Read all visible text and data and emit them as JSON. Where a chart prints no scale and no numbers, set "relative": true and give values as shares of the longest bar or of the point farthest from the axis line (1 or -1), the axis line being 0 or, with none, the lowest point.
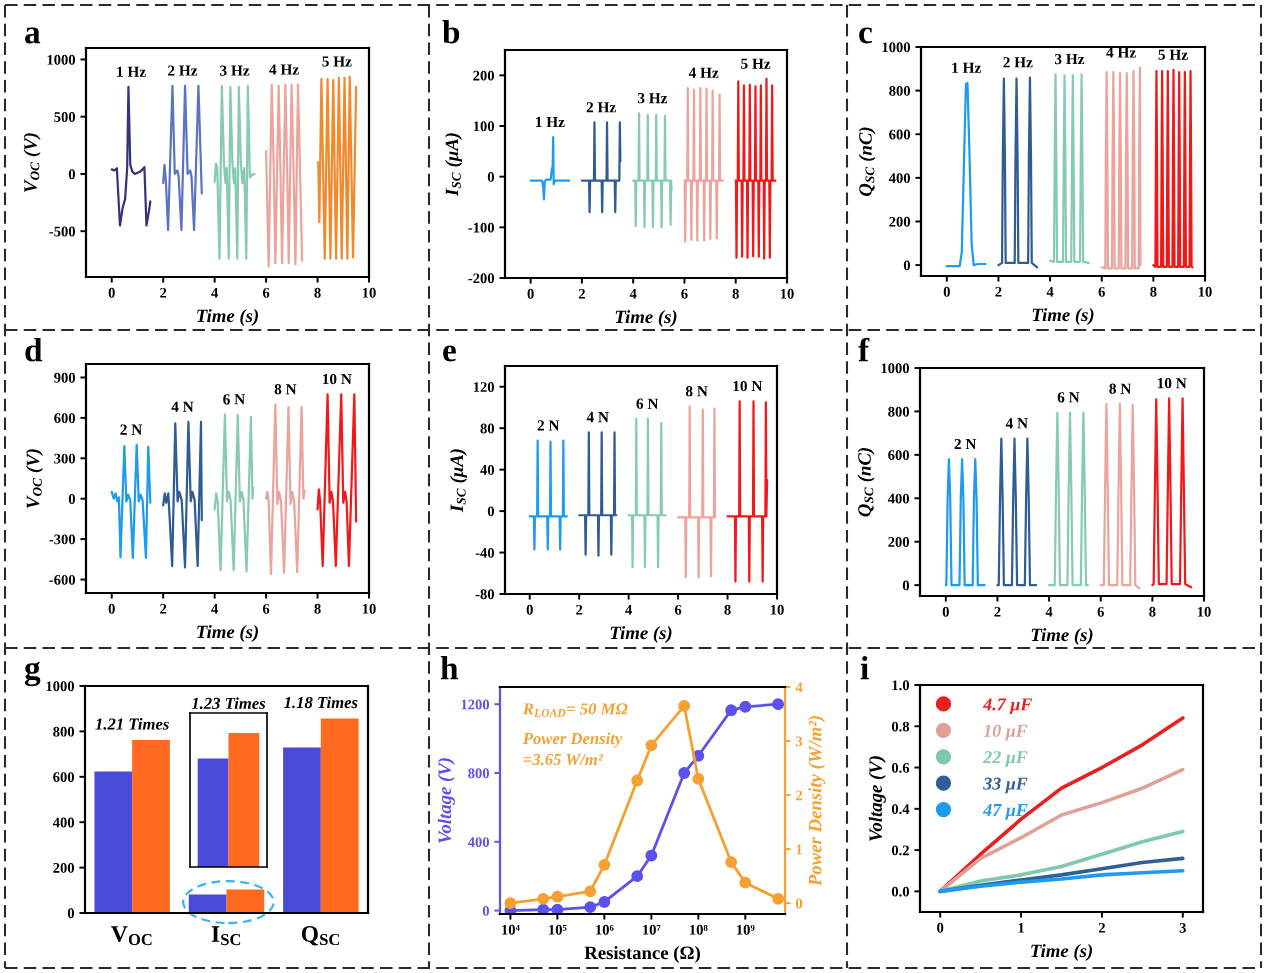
{
  "chart_data": [
    {
      "type": "line",
      "title": "a",
      "xlabel": "Time (s)",
      "ylabel": "V$_{OC}$ (V)",
      "xlim": [
        -1,
        10
      ],
      "xticks": [
        0,
        2,
        4,
        6,
        8,
        10
      ],
      "ylim": [
        -900,
        1100
      ],
      "yticks": [
        -500,
        0,
        500,
        1000
      ],
      "series": [
        {
          "name": "1 Hz",
          "color": "#34347a",
          "x": [
            0,
            0.1,
            0.15,
            0.2,
            0.32,
            0.42,
            0.52,
            0.6,
            0.65,
            0.72,
            0.8,
            0.9,
            1.0,
            1.1,
            1.2,
            1.27,
            1.35,
            1.45,
            1.5
          ],
          "values": [
            40,
            30,
            40,
            50,
            -450,
            -300,
            -220,
            50,
            760,
            80,
            20,
            0,
            10,
            20,
            40,
            60,
            -450,
            -320,
            -240
          ]
        },
        {
          "name": "2 Hz",
          "color": "#5b73c4",
          "x": [
            2.0,
            2.05,
            2.1,
            2.19,
            2.36,
            2.45,
            2.55,
            2.6,
            2.71,
            2.85,
            2.95,
            3.05,
            3.1,
            3.2,
            3.37,
            3.5
          ],
          "values": [
            -80,
            80,
            -40,
            -490,
            770,
            0,
            30,
            -20,
            -490,
            770,
            0,
            30,
            -20,
            -490,
            770,
            -170
          ]
        },
        {
          "name": "3 Hz",
          "color": "#86cbb0",
          "x": [
            4.0,
            4.05,
            4.1,
            4.19,
            4.28,
            4.36,
            4.42,
            4.47,
            4.55,
            4.61,
            4.69,
            4.75,
            4.8,
            4.88,
            4.94,
            5.02,
            5.08,
            5.15,
            5.23,
            5.29,
            5.37,
            5.45,
            5.55
          ],
          "values": [
            -70,
            90,
            60,
            -740,
            770,
            100,
            -80,
            50,
            -740,
            760,
            100,
            -80,
            50,
            -740,
            760,
            100,
            -80,
            50,
            -740,
            770,
            -30,
            -10,
            0
          ]
        },
        {
          "name": "4 Hz",
          "color": "#eba39c",
          "x": [
            6.0,
            6.1,
            6.22,
            6.3,
            6.36,
            6.49,
            6.56,
            6.62,
            6.75,
            6.82,
            6.88,
            6.99,
            7.07,
            7.14,
            7.24,
            7.32,
            7.4
          ],
          "values": [
            200,
            -810,
            780,
            20,
            -780,
            770,
            20,
            -780,
            780,
            20,
            -780,
            780,
            20,
            -790,
            780,
            20,
            -760
          ]
        },
        {
          "name": "5 Hz",
          "color": "#f08a2c",
          "x": [
            8.0,
            8.03,
            8.07,
            8.15,
            8.28,
            8.39,
            8.5,
            8.61,
            8.72,
            8.83,
            8.94,
            9.05,
            9.16,
            9.25,
            9.38,
            9.5
          ],
          "values": [
            100,
            100,
            -420,
            830,
            -740,
            830,
            -740,
            820,
            -740,
            840,
            -740,
            840,
            -740,
            850,
            -730,
            760
          ]
        }
      ]
    },
    {
      "type": "line",
      "title": "b",
      "xlabel": "Time (s)",
      "ylabel": "I$_{SC}$ (μA)",
      "xlim": [
        -1,
        10
      ],
      "xticks": [
        0,
        2,
        4,
        6,
        8,
        10
      ],
      "ylim": [
        -200,
        250
      ],
      "yticks": [
        -200,
        -100,
        0,
        100,
        200
      ],
      "series": [
        {
          "name": "1 Hz",
          "color": "#1e9af0",
          "x": [
            0,
            0.45,
            0.49,
            0.52,
            0.55,
            0.6,
            0.78,
            0.83,
            0.86,
            0.88,
            0.9,
            0.94,
            1.5
          ],
          "values": [
            -8,
            -8,
            -20,
            -45,
            -10,
            -6,
            -6,
            15,
            20,
            78,
            -15,
            -8,
            -8
          ]
        },
        {
          "name": "2 Hz",
          "color": "#2f5c94",
          "x": [
            2.0,
            2.28,
            2.3,
            2.32,
            2.47,
            2.49,
            2.51,
            2.77,
            2.79,
            2.81,
            2.96,
            2.98,
            3.0,
            3.28,
            3.3,
            3.32,
            3.46,
            3.48,
            3.5
          ],
          "values": [
            -8,
            -8,
            -70,
            -8,
            -8,
            107,
            -8,
            -8,
            -70,
            -8,
            -8,
            107,
            -8,
            -8,
            -70,
            -8,
            -8,
            107,
            30
          ]
        },
        {
          "name": "3 Hz",
          "color": "#86cbb0",
          "x": [
            4.0,
            4.08,
            4.1,
            4.12,
            4.21,
            4.23,
            4.25,
            4.42,
            4.44,
            4.46,
            4.55,
            4.57,
            4.59,
            4.75,
            4.77,
            4.79,
            4.88,
            4.9,
            4.92,
            5.09,
            5.11,
            5.13,
            5.22,
            5.24,
            5.26,
            5.44,
            5.46,
            5.48,
            5.5
          ],
          "values": [
            -8,
            -8,
            -98,
            -8,
            -8,
            125,
            -8,
            -8,
            -100,
            -8,
            -8,
            122,
            -8,
            -8,
            -100,
            -8,
            -8,
            122,
            -8,
            -8,
            -100,
            -8,
            -8,
            120,
            -8,
            -8,
            -95,
            -8,
            -25
          ]
        },
        {
          "name": "4 Hz",
          "color": "#eba39c",
          "x": [
            6.0,
            6.01,
            6.03,
            6.05,
            6.11,
            6.13,
            6.15,
            6.25,
            6.27,
            6.29,
            6.35,
            6.37,
            6.39,
            6.48,
            6.5,
            6.52,
            6.6,
            6.62,
            6.64,
            6.75,
            6.77,
            6.79,
            6.84,
            6.86,
            6.88,
            6.99,
            7.01,
            7.03,
            7.08,
            7.1,
            7.12,
            7.24,
            7.26,
            7.28,
            7.35,
            7.37,
            7.39,
            7.5
          ],
          "values": [
            -8,
            -8,
            -128,
            -8,
            -8,
            175,
            -8,
            -8,
            -125,
            -8,
            -8,
            172,
            -8,
            -8,
            -126,
            -8,
            -8,
            175,
            -8,
            -8,
            -126,
            -8,
            -8,
            174,
            -8,
            -8,
            -123,
            -8,
            -8,
            170,
            -8,
            -8,
            -122,
            -8,
            -8,
            162,
            -8,
            -8
          ]
        },
        {
          "name": "5 Hz",
          "color": "#f01818",
          "x": [
            8.0,
            8.01,
            8.03,
            8.05,
            8.08,
            8.1,
            8.12,
            8.23,
            8.25,
            8.27,
            8.3,
            8.32,
            8.34,
            8.44,
            8.46,
            8.48,
            8.53,
            8.55,
            8.57,
            8.66,
            8.68,
            8.7,
            8.75,
            8.77,
            8.79,
            8.88,
            8.9,
            8.92,
            8.96,
            8.98,
            9.0,
            9.09,
            9.11,
            9.13,
            9.18,
            9.2,
            9.22,
            9.31,
            9.33,
            9.35,
            9.4,
            9.42,
            9.44,
            9.55
          ],
          "values": [
            -8,
            -8,
            -160,
            -8,
            -8,
            188,
            -8,
            -8,
            -158,
            -8,
            -8,
            180,
            -8,
            -8,
            -160,
            -8,
            -8,
            181,
            -8,
            -8,
            -157,
            -8,
            -8,
            178,
            -8,
            -8,
            -158,
            -8,
            -8,
            180,
            -8,
            -8,
            -162,
            -8,
            -8,
            193,
            -8,
            -8,
            -160,
            -8,
            -8,
            180,
            -8,
            -8
          ]
        }
      ]
    },
    {
      "type": "line",
      "title": "c",
      "xlabel": "Time (s)",
      "ylabel": "Q$_{SC}$ (nC)",
      "xlim": [
        -1,
        10
      ],
      "xticks": [
        0,
        2,
        4,
        6,
        8,
        10
      ],
      "ylim": [
        -50,
        1000
      ],
      "yticks": [
        0,
        200,
        400,
        600,
        800,
        1000
      ],
      "series": [
        {
          "name": "1 Hz",
          "color": "#1e9af0",
          "x": [
            0,
            0.5,
            0.58,
            0.66,
            0.74,
            0.8,
            0.88,
            0.96,
            1.04,
            1.2,
            1.5
          ],
          "values": [
            -5,
            -5,
            60,
            450,
            830,
            835,
            500,
            100,
            0,
            5,
            5
          ]
        },
        {
          "name": "2 Hz",
          "color": "#2f5c94",
          "x": [
            2.0,
            2.14,
            2.17,
            2.21,
            2.25,
            2.28,
            2.63,
            2.66,
            2.7,
            2.74,
            2.77,
            3.15,
            3.18,
            3.22,
            3.26,
            3.29,
            3.5
          ],
          "values": [
            0,
            10,
            500,
            855,
            500,
            10,
            10,
            500,
            855,
            500,
            10,
            10,
            500,
            860,
            500,
            10,
            -10
          ]
        },
        {
          "name": "3 Hz",
          "color": "#86cbb0",
          "x": [
            4.0,
            4.15,
            4.18,
            4.21,
            4.24,
            4.27,
            4.5,
            4.53,
            4.56,
            4.59,
            4.62,
            4.82,
            4.85,
            4.88,
            4.91,
            4.94,
            5.16,
            5.19,
            5.22,
            5.25,
            5.28,
            5.5
          ],
          "values": [
            20,
            15,
            500,
            875,
            500,
            15,
            15,
            500,
            870,
            500,
            15,
            15,
            500,
            870,
            500,
            15,
            15,
            500,
            875,
            500,
            15,
            10
          ]
        },
        {
          "name": "4 Hz",
          "color": "#eba39c",
          "x": [
            6.0,
            6.14,
            6.16,
            6.19,
            6.22,
            6.24,
            6.4,
            6.42,
            6.45,
            6.48,
            6.5,
            6.66,
            6.68,
            6.71,
            6.74,
            6.76,
            6.92,
            6.94,
            6.97,
            7.0,
            7.02,
            7.18,
            7.2,
            7.23,
            7.26,
            7.28,
            7.43,
            7.45,
            7.48,
            7.5
          ],
          "values": [
            -10,
            -15,
            500,
            885,
            500,
            -15,
            -15,
            500,
            885,
            500,
            -15,
            -15,
            500,
            880,
            500,
            -15,
            -15,
            500,
            880,
            500,
            -15,
            -15,
            500,
            890,
            500,
            -15,
            -15,
            500,
            905,
            0
          ]
        },
        {
          "name": "5 Hz",
          "color": "#f01818",
          "x": [
            8.0,
            8.08,
            8.1,
            8.12,
            8.14,
            8.16,
            8.3,
            8.32,
            8.34,
            8.36,
            8.38,
            8.52,
            8.54,
            8.56,
            8.58,
            8.6,
            8.74,
            8.76,
            8.78,
            8.8,
            8.82,
            8.96,
            8.98,
            9.0,
            9.02,
            9.04,
            9.18,
            9.2,
            9.22,
            9.24,
            9.26,
            9.4,
            9.42,
            9.44,
            9.46,
            9.48,
            9.52
          ],
          "values": [
            0,
            -8,
            500,
            890,
            500,
            -8,
            -8,
            500,
            890,
            500,
            -8,
            -8,
            500,
            890,
            500,
            -8,
            -8,
            500,
            895,
            500,
            -8,
            -8,
            500,
            885,
            500,
            -8,
            -8,
            500,
            885,
            500,
            -8,
            -8,
            500,
            890,
            500,
            -8,
            -10
          ]
        }
      ]
    },
    {
      "type": "line",
      "title": "d",
      "xlabel": "Time (s)",
      "ylabel": "V$_{OC}$ (V)",
      "xlim": [
        -1,
        10
      ],
      "xticks": [
        0,
        2,
        4,
        6,
        8,
        10
      ],
      "ylim": [
        -700,
        1000
      ],
      "yticks": [
        -600,
        -300,
        0,
        300,
        600,
        900
      ],
      "series": [
        {
          "name": "2 N",
          "color": "#1e9af0",
          "x": [
            0,
            0.08,
            0.15,
            0.22,
            0.28,
            0.34,
            0.49,
            0.57,
            0.64,
            0.72,
            0.82,
            0.97,
            1.05,
            1.12,
            1.2,
            1.33,
            1.42,
            1.5
          ],
          "values": [
            50,
            0,
            40,
            -20,
            10,
            -435,
            390,
            -20,
            30,
            -10,
            -440,
            400,
            -20,
            30,
            -10,
            -440,
            385,
            -30
          ]
        },
        {
          "name": "4 N",
          "color": "#2f5c94",
          "x": [
            2.0,
            2.06,
            2.12,
            2.2,
            2.35,
            2.47,
            2.56,
            2.63,
            2.72,
            2.85,
            2.98,
            3.07,
            3.14,
            3.22,
            3.34,
            3.47,
            3.5
          ],
          "values": [
            -50,
            40,
            -30,
            40,
            -500,
            560,
            -20,
            50,
            -10,
            -510,
            570,
            -20,
            50,
            -10,
            -500,
            570,
            -160
          ]
        },
        {
          "name": "6 N",
          "color": "#86cbb0",
          "x": [
            4.0,
            4.06,
            4.12,
            4.23,
            4.4,
            4.48,
            4.55,
            4.62,
            4.74,
            4.9,
            4.98,
            5.05,
            5.12,
            5.24,
            5.41,
            5.47,
            5.5
          ],
          "values": [
            -80,
            40,
            -20,
            -530,
            625,
            -20,
            50,
            -10,
            -530,
            620,
            -20,
            50,
            -10,
            -540,
            605,
            0,
            80
          ]
        },
        {
          "name": "8 N",
          "color": "#eba39c",
          "x": [
            6.0,
            6.05,
            6.1,
            6.19,
            6.36,
            6.44,
            6.51,
            6.58,
            6.7,
            6.87,
            6.95,
            7.02,
            7.09,
            7.21,
            7.38,
            7.45,
            7.5
          ],
          "values": [
            0,
            50,
            -20,
            -560,
            700,
            -40,
            50,
            -20,
            -550,
            680,
            -40,
            50,
            -20,
            -545,
            680,
            0,
            60
          ]
        },
        {
          "name": "10 N",
          "color": "#f01818",
          "x": [
            8.0,
            8.05,
            8.1,
            8.2,
            8.39,
            8.47,
            8.54,
            8.6,
            8.71,
            8.92,
            9.0,
            9.07,
            9.13,
            9.22,
            9.43,
            9.5
          ],
          "values": [
            -80,
            70,
            -20,
            -500,
            775,
            -30,
            50,
            -20,
            -500,
            775,
            -30,
            50,
            -20,
            -500,
            775,
            -170
          ]
        }
      ]
    },
    {
      "type": "line",
      "title": "e",
      "xlabel": "Time (s)",
      "ylabel": "I$_{SC}$ (μA)",
      "xlim": [
        -1,
        10
      ],
      "xticks": [
        0,
        2,
        4,
        6,
        8,
        10
      ],
      "ylim": [
        -80,
        140
      ],
      "yticks": [
        -80,
        -40,
        0,
        40,
        80,
        120
      ],
      "series": [
        {
          "name": "2 N",
          "color": "#1e9af0",
          "x": [
            0,
            0.17,
            0.19,
            0.21,
            0.3,
            0.32,
            0.34,
            0.71,
            0.73,
            0.75,
            0.82,
            0.84,
            0.86,
            1.21,
            1.23,
            1.25,
            1.34,
            1.36,
            1.38,
            1.5
          ],
          "values": [
            -5,
            -5,
            -37,
            -5,
            -5,
            68,
            -5,
            -5,
            -37,
            -5,
            -5,
            67,
            -5,
            -5,
            -37,
            -5,
            -5,
            68,
            -5,
            -5
          ]
        },
        {
          "name": "4 N",
          "color": "#2f5c94",
          "x": [
            2.0,
            2.24,
            2.26,
            2.28,
            2.37,
            2.39,
            2.41,
            2.76,
            2.78,
            2.8,
            2.89,
            2.91,
            2.93,
            3.28,
            3.3,
            3.32,
            3.41,
            3.43,
            3.45,
            3.5
          ],
          "values": [
            -4,
            -4,
            -42,
            -4,
            -4,
            76,
            -4,
            -4,
            -43,
            -4,
            -4,
            76,
            -4,
            -4,
            -42,
            -4,
            -4,
            76,
            -4,
            -4
          ]
        },
        {
          "name": "6 N",
          "color": "#86cbb0",
          "x": [
            4.0,
            4.14,
            4.16,
            4.18,
            4.29,
            4.31,
            4.33,
            4.64,
            4.66,
            4.68,
            4.76,
            4.78,
            4.8,
            5.17,
            5.19,
            5.21,
            5.3,
            5.32,
            5.34,
            5.5
          ],
          "values": [
            -4,
            -4,
            -54,
            -4,
            -4,
            89,
            -4,
            -4,
            -54,
            -4,
            -4,
            89,
            -4,
            -4,
            -54,
            -4,
            -4,
            85,
            -4,
            -4
          ]
        },
        {
          "name": "8 N",
          "color": "#eba39c",
          "x": [
            6.0,
            6.29,
            6.31,
            6.33,
            6.45,
            6.47,
            6.49,
            6.81,
            6.83,
            6.85,
            6.98,
            7.0,
            7.02,
            7.31,
            7.33,
            7.35,
            7.45,
            7.47,
            7.49,
            7.5
          ],
          "values": [
            -6,
            -6,
            -64,
            -6,
            -6,
            101,
            -6,
            -6,
            -64,
            -6,
            -6,
            98,
            -6,
            -6,
            -63,
            -6,
            -6,
            99,
            -6,
            -6
          ]
        },
        {
          "name": "10 N",
          "color": "#f01818",
          "x": [
            8.0,
            8.3,
            8.32,
            8.34,
            8.47,
            8.49,
            8.51,
            8.86,
            8.88,
            8.9,
            9.03,
            9.05,
            9.07,
            9.4,
            9.42,
            9.44,
            9.53,
            9.55,
            9.57,
            9.6
          ],
          "values": [
            -5,
            -5,
            -68,
            -5,
            -5,
            106,
            -5,
            -5,
            -68,
            -5,
            -5,
            106,
            -5,
            -5,
            -68,
            -5,
            -5,
            105,
            -5,
            30
          ]
        }
      ]
    },
    {
      "type": "line",
      "title": "f",
      "xlabel": "Time (s)",
      "ylabel": "Q$_{SC}$ (nC)",
      "xlim": [
        -1,
        10
      ],
      "xticks": [
        0,
        2,
        4,
        6,
        8,
        10
      ],
      "ylim": [
        -50,
        1000
      ],
      "yticks": [
        0,
        200,
        400,
        600,
        800,
        1000
      ],
      "series": [
        {
          "name": "2 N",
          "color": "#1e9af0",
          "x": [
            0,
            0.02,
            0.07,
            0.12,
            0.17,
            0.22,
            0.53,
            0.58,
            0.63,
            0.68,
            0.73,
            1.04,
            1.09,
            1.14,
            1.19,
            1.24,
            1.5
          ],
          "values": [
            0,
            0,
            400,
            580,
            400,
            0,
            0,
            400,
            580,
            400,
            0,
            0,
            400,
            580,
            400,
            0,
            0
          ]
        },
        {
          "name": "4 N",
          "color": "#2f5c94",
          "x": [
            2.0,
            2.05,
            2.1,
            2.15,
            2.2,
            2.25,
            2.56,
            2.61,
            2.66,
            2.71,
            2.76,
            3.06,
            3.11,
            3.16,
            3.21,
            3.26,
            3.5
          ],
          "values": [
            0,
            0,
            400,
            675,
            400,
            0,
            0,
            400,
            675,
            400,
            0,
            0,
            400,
            675,
            400,
            0,
            0
          ]
        },
        {
          "name": "6 N",
          "color": "#86cbb0",
          "x": [
            4.0,
            4.22,
            4.27,
            4.32,
            4.37,
            4.42,
            4.71,
            4.76,
            4.81,
            4.86,
            4.91,
            5.23,
            5.28,
            5.33,
            5.38,
            5.43,
            5.5
          ],
          "values": [
            0,
            0,
            450,
            795,
            450,
            0,
            0,
            450,
            795,
            450,
            0,
            0,
            450,
            795,
            450,
            0,
            0
          ]
        },
        {
          "name": "8 N",
          "color": "#eba39c",
          "x": [
            6.0,
            6.12,
            6.17,
            6.22,
            6.27,
            6.32,
            6.64,
            6.69,
            6.74,
            6.79,
            6.84,
            7.14,
            7.19,
            7.24,
            7.29,
            7.34,
            7.5
          ],
          "values": [
            0,
            0,
            450,
            835,
            450,
            0,
            0,
            450,
            835,
            450,
            0,
            0,
            450,
            830,
            450,
            0,
            -15
          ]
        },
        {
          "name": "10 N",
          "color": "#f01818",
          "x": [
            8.0,
            8.05,
            8.1,
            8.15,
            8.2,
            8.25,
            8.55,
            8.6,
            8.65,
            8.7,
            8.75,
            9.07,
            9.12,
            9.17,
            9.22,
            9.27,
            9.5
          ],
          "values": [
            0,
            5,
            450,
            855,
            450,
            5,
            5,
            450,
            860,
            450,
            5,
            5,
            450,
            860,
            450,
            5,
            -10
          ]
        }
      ]
    },
    {
      "type": "bar",
      "title": "g",
      "categories": [
        "V$_{OC}$",
        "I$_{SC}$",
        "Q$_{SC}$"
      ],
      "ylim": [
        0,
        1000
      ],
      "yticks": [
        0,
        200,
        400,
        600,
        800,
        1000
      ],
      "series": [
        {
          "color": "#4a4ad8",
          "values": [
            623,
            81,
            729
          ]
        },
        {
          "color": "#ff6a1e",
          "values": [
            762,
            103,
            857
          ]
        }
      ],
      "annotations": [
        {
          "text": "1.21 Times",
          "x": "V$_{OC}$",
          "y": 762
        },
        {
          "text": "1.18 Times",
          "x": "Q$_{SC}$",
          "y": 857
        }
      ]
    },
    {
      "type": "bar",
      "title": "1.23 Times",
      "relative": true,
      "categories": [
        null
      ],
      "series": [
        {
          "color": "#4a4ad8",
          "values": [
            0.81
          ]
        },
        {
          "color": "#ff6a1e",
          "values": [
            1
          ]
        }
      ]
    },
    {
      "type": "line",
      "title": "h",
      "xlabel": "Resistance (Ω)",
      "ylabel": "Voltage (V)",
      "y2label": "Power Density (W/m²)",
      "log": "x",
      "marker": "circle",
      "x": [
        10000,
        50000,
        100000,
        500000,
        1000000,
        5000000,
        10000000,
        50000000,
        100000000,
        500000000,
        1000000000,
        5000000000
      ],
      "xlim": [
        6000,
        7000000000
      ],
      "xticks": [
        {
          "value": 10000,
          "label": "10⁴"
        },
        {
          "value": 100000,
          "label": "10⁵"
        },
        {
          "value": 1000000,
          "label": "10⁶"
        },
        {
          "value": 10000000,
          "label": "10⁷"
        },
        {
          "value": 100000000,
          "label": "10⁸"
        },
        {
          "value": 1000000000,
          "label": "10⁹"
        }
      ],
      "ylim": [
        -20,
        1300
      ],
      "yticks": [
        0,
        400,
        800,
        1200
      ],
      "y2lim": [
        -0.2,
        4
      ],
      "y2ticks": [
        0,
        1,
        2,
        3,
        4
      ],
      "series": [
        {
          "color": "#5b50f0",
          "values": [
            0,
            5,
            5,
            20,
            50,
            200,
            320,
            800,
            900,
            1165,
            1185,
            1200
          ]
        },
        {
          "color": "#f5a030",
          "axis": "y2",
          "values": [
            0,
            0.08,
            0.12,
            0.22,
            0.71,
            2.27,
            2.92,
            3.65,
            2.3,
            0.76,
            0.38,
            0.08
          ]
        }
      ],
      "annotations": [
        "R$_{LOAD}$= 50 MΩ",
        "Power Density\n=3.65 W/m²"
      ]
    },
    {
      "type": "line",
      "title": "i",
      "xlabel": "Time (s)",
      "ylabel": "Voltage (V)",
      "legend": "top left",
      "x": [
        0,
        0.5,
        1,
        1.5,
        2,
        2.5,
        3
      ],
      "xlim": [
        -0.25,
        3.25
      ],
      "xticks": [
        0,
        1,
        2,
        3
      ],
      "ylim": [
        -0.1,
        1.0
      ],
      "yticks": [
        {
          "value": 0,
          "label": "0.0"
        },
        {
          "value": 0.2,
          "label": "0.2"
        },
        {
          "value": 0.4,
          "label": "0.4"
        },
        {
          "value": 0.6,
          "label": "0.6"
        },
        {
          "value": 0.8,
          "label": "0.8"
        },
        {
          "value": 1.0,
          "label": "1.0"
        }
      ],
      "series": [
        {
          "name": "4.7 μF",
          "color": "#e8201f",
          "values": [
            0,
            0.18,
            0.35,
            0.5,
            0.6,
            0.71,
            0.84
          ]
        },
        {
          "name": "10 μF",
          "color": "#e0a09a",
          "values": [
            0,
            0.16,
            0.26,
            0.37,
            0.43,
            0.5,
            0.59
          ]
        },
        {
          "name": "22 μF",
          "color": "#7fc8a9",
          "values": [
            0,
            0.05,
            0.08,
            0.12,
            0.18,
            0.24,
            0.29
          ]
        },
        {
          "name": "33 μF",
          "color": "#2f5f96",
          "values": [
            0,
            0.03,
            0.055,
            0.08,
            0.11,
            0.14,
            0.16
          ]
        },
        {
          "name": "47 μF",
          "color": "#1e9bf0",
          "values": [
            0,
            0.025,
            0.045,
            0.06,
            0.08,
            0.09,
            0.1
          ]
        }
      ]
    }
  ]
}
